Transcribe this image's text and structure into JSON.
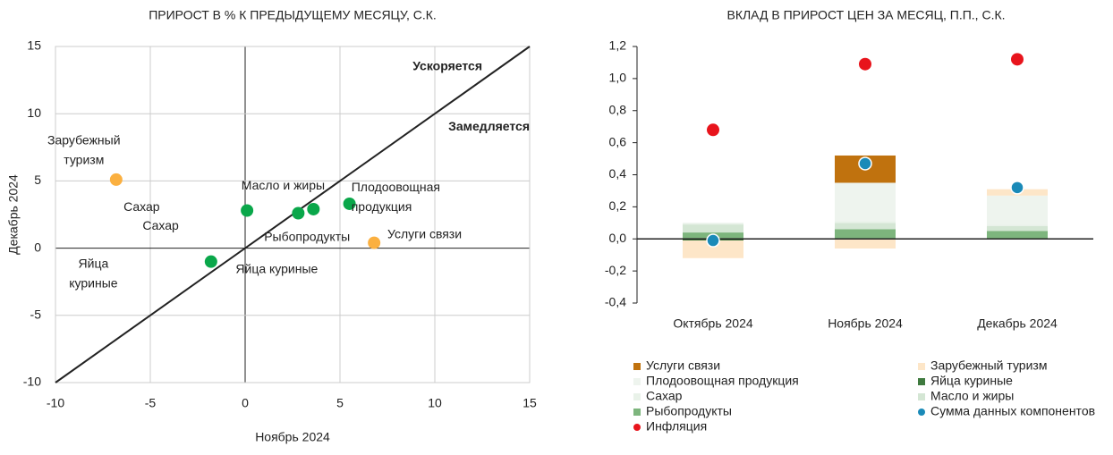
{
  "chart_data": [
    {
      "type": "scatter",
      "title": "ПРИРОСТ В % К ПРЕДЫДУЩЕМУ МЕСЯЦУ, С.К.",
      "x_label": "Ноябрь 2024",
      "y_label": "Декабрь 2024",
      "xlim": [
        -10,
        15
      ],
      "ylim": [
        -10,
        15
      ],
      "xticks": [
        -10,
        -5,
        0,
        5,
        10,
        15
      ],
      "yticks": [
        -10,
        -5,
        0,
        5,
        10,
        15
      ],
      "grid": true,
      "labels": [
        "Зарубежный туризм",
        "Сахар",
        "Рыбопродукты",
        "Масло и жиры",
        "Плодоовощная продукция",
        "Яйца куриные",
        "Услуги связи"
      ],
      "x": [
        -6.8,
        0.1,
        2.8,
        3.6,
        5.5,
        -1.8,
        6.8
      ],
      "y": [
        5.1,
        2.8,
        2.6,
        2.9,
        3.3,
        -1.0,
        0.4
      ],
      "colors": [
        "#fbb040",
        "#0aa74a",
        "#0aa74a",
        "#0aa74a",
        "#0aa74a",
        "#0aa74a",
        "#fbb040"
      ],
      "annotations": [
        "Ускоряется",
        "Замедляется",
        "Сахар",
        "Яйца куриные"
      ]
    },
    {
      "type": "bar",
      "title": "ВКЛАД В ПРИРОСТ ЦЕН ЗА МЕСЯЦ, П.П., С.К.",
      "categories": [
        "Октябрь 2024",
        "Ноябрь 2024",
        "Декабрь 2024"
      ],
      "ylim": [
        -0.4,
        1.2
      ],
      "yticks": [
        {
          "value": -0.4,
          "label": "-0,4"
        },
        {
          "value": -0.2,
          "label": "-0,2"
        },
        {
          "value": 0,
          "label": "0,0"
        },
        {
          "value": 0.2,
          "label": "0,2"
        },
        {
          "value": 0.4,
          "label": "0,4"
        },
        {
          "value": 0.6,
          "label": "0,6"
        },
        {
          "value": 0.8,
          "label": "0,8"
        },
        {
          "value": 1.0,
          "label": "1,0"
        },
        {
          "value": 1.2,
          "label": "1,2"
        }
      ],
      "series": [
        {
          "name": "Рыбопродукты",
          "color": "#7db57d",
          "values": [
            0.04,
            0.06,
            0.05
          ]
        },
        {
          "name": "Масло и жиры",
          "color": "#d4e6d4",
          "values": [
            0.05,
            0.04,
            0.03
          ]
        },
        {
          "name": "Сахар",
          "color": "#e9f2e9",
          "values": [
            0.01,
            0.01,
            0.01
          ]
        },
        {
          "name": "Плодоовощная продукция",
          "color": "#eef4ee",
          "values": [
            0,
            0.24,
            0.18
          ]
        },
        {
          "name": "Яйца куриные",
          "color": "#3f7a3f",
          "values": [
            -0.01,
            0,
            0
          ]
        },
        {
          "name": "Зарубежный туризм",
          "color": "#fde6c8",
          "values": [
            -0.11,
            -0.06,
            0.04
          ]
        },
        {
          "name": "Услуги связи",
          "color": "#c0720e",
          "values": [
            0,
            0.17,
            0
          ]
        },
        {
          "name": "Сумма данных компонентов",
          "color": "#1a8ab8",
          "marker": "dot",
          "values": [
            -0.01,
            0.47,
            0.32
          ]
        },
        {
          "name": "Инфляция",
          "color": "#e8141c",
          "marker": "dot",
          "values": [
            0.68,
            1.09,
            1.12
          ]
        }
      ]
    }
  ]
}
